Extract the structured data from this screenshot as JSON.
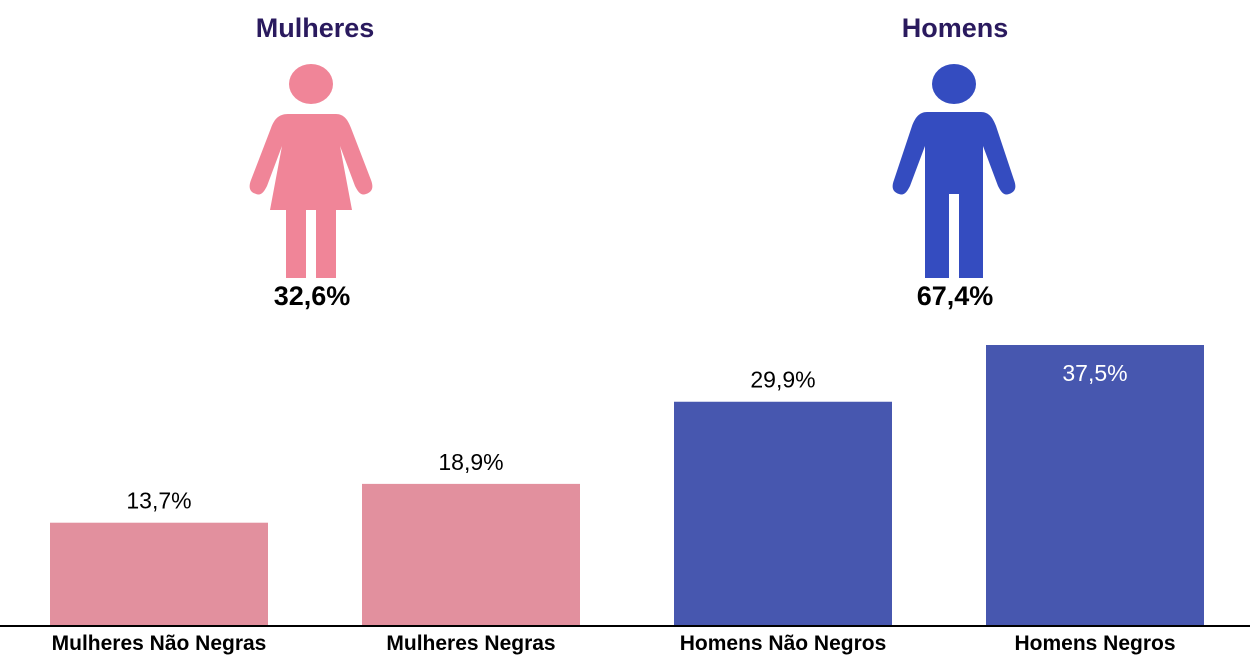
{
  "groups": {
    "women": {
      "title": "Mulheres",
      "total": "32,6%",
      "icon": "woman-icon",
      "title_color": "#2a1a5e",
      "icon_color": "#f08598"
    },
    "men": {
      "title": "Homens",
      "total": "67,4%",
      "icon": "man-icon",
      "title_color": "#2a1a5e",
      "icon_color": "#344cc0"
    }
  },
  "chart_data": {
    "type": "bar",
    "categories": [
      "Mulheres Não Negras",
      "Mulheres Negras",
      "Homens Não Negros",
      "Homens Negros"
    ],
    "values": [
      13.7,
      18.9,
      29.9,
      37.5
    ],
    "value_labels": [
      "13,7%",
      "18,9%",
      "29,9%",
      "37,5%"
    ],
    "bar_colors": [
      "#e2909e",
      "#e2909e",
      "#4757af",
      "#4757af"
    ],
    "label_inside_last": true,
    "ylim": [
      0,
      37.5
    ],
    "grid": false,
    "legend": "none"
  }
}
